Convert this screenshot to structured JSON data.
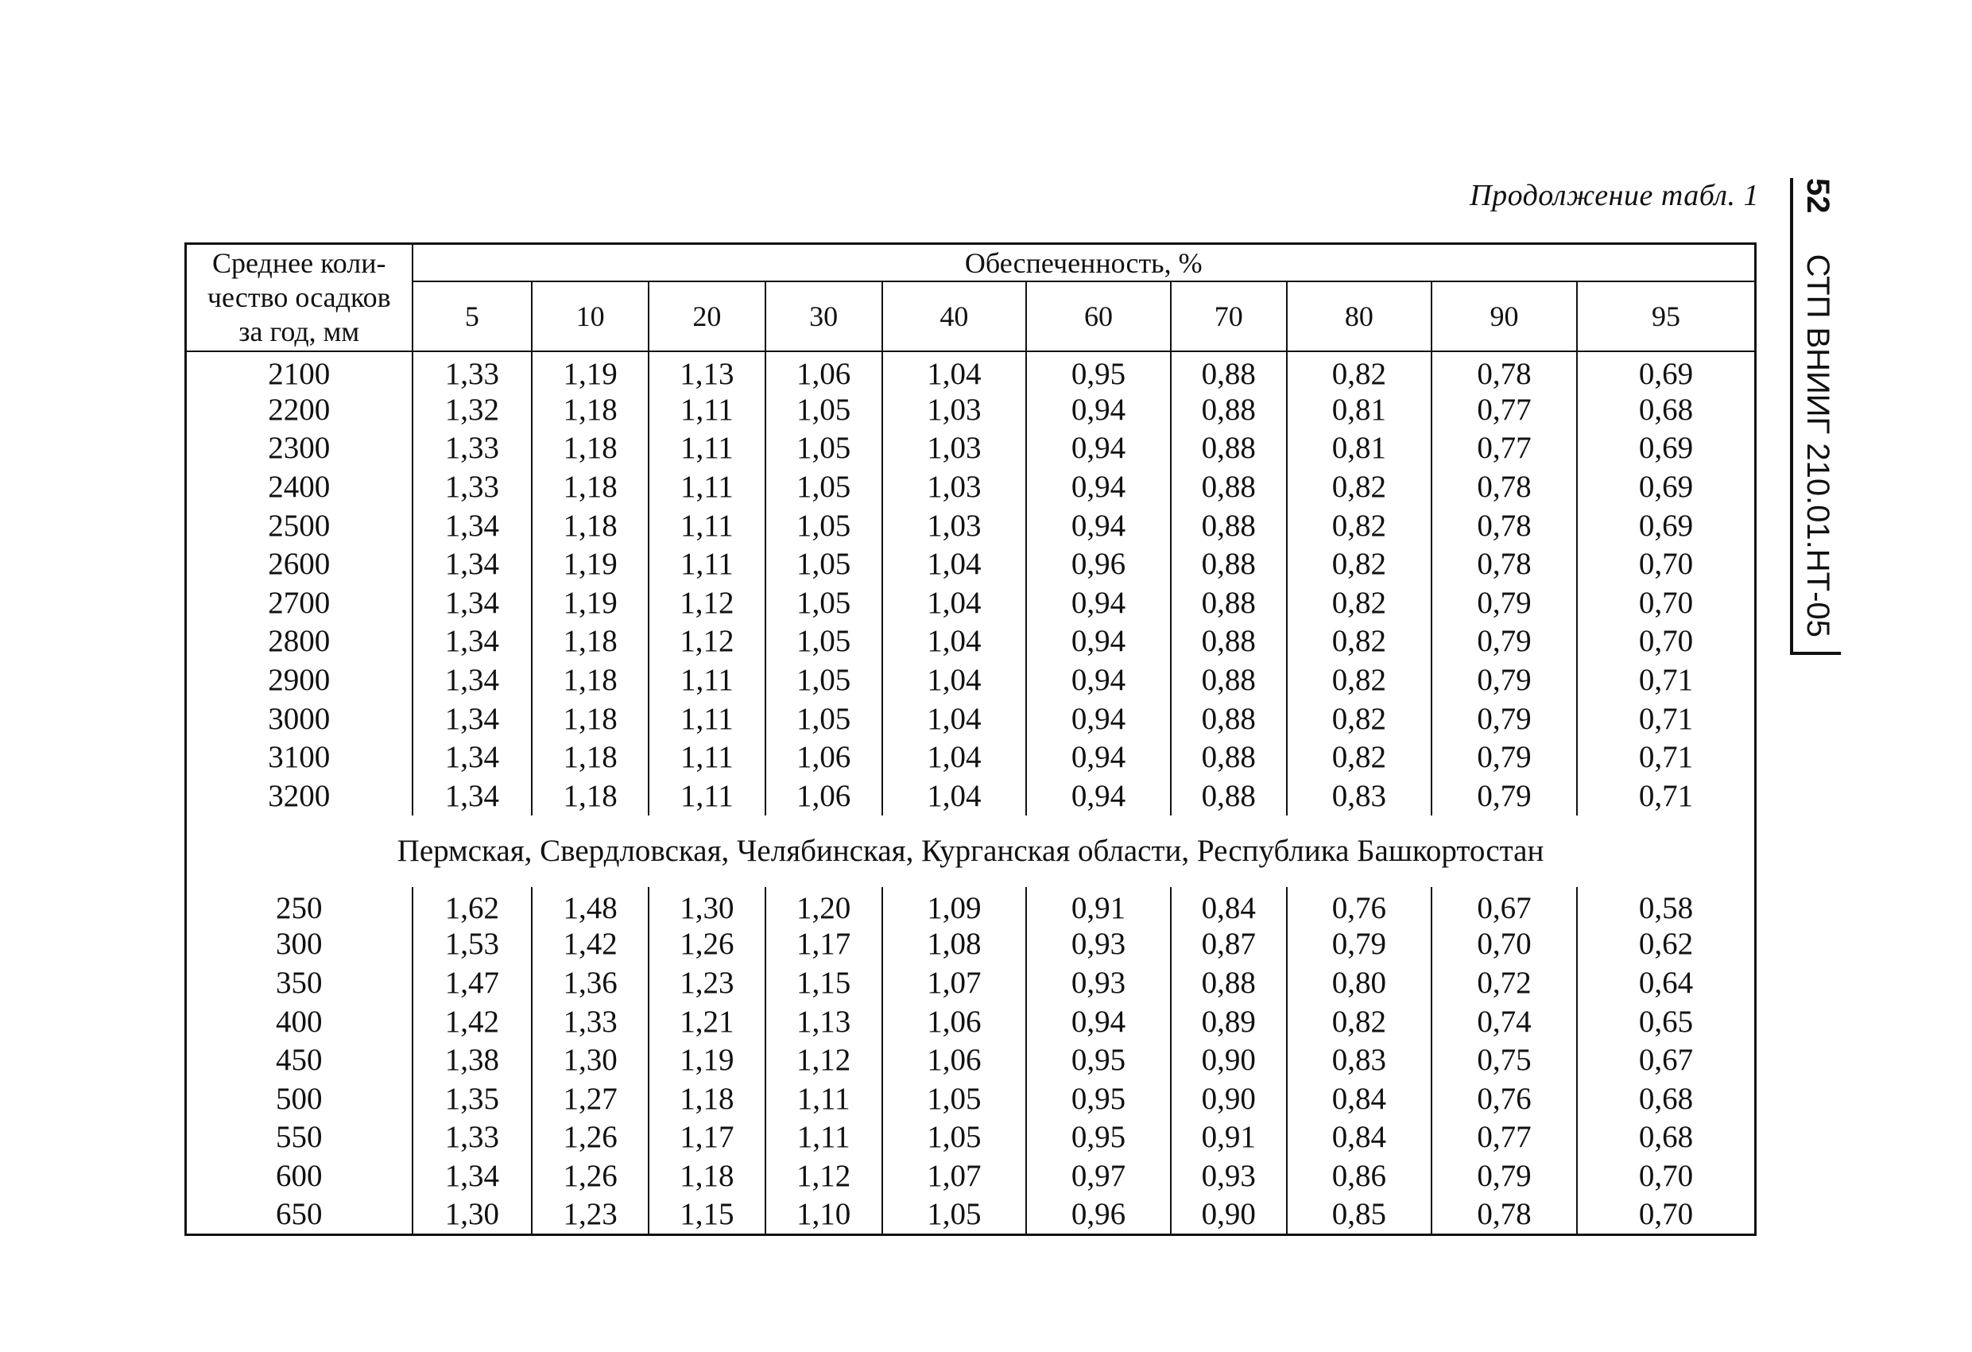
{
  "header": {
    "caption": "Продолжение  табл. 1",
    "page_number": "52",
    "doc_code": "СТП ВНИИГ 210.01.НТ-05"
  },
  "table": {
    "stub_header": "Среднее коли-чество осадков за год, мм",
    "stub_header_lines": [
      "Среднее коли-",
      "чество осадков",
      "за год, мм"
    ],
    "group_header": "Обеспеченность, %",
    "columns": [
      "5",
      "10",
      "20",
      "30",
      "40",
      "60",
      "70",
      "80",
      "90",
      "95"
    ],
    "section1_rows": [
      {
        "p": "2100",
        "v": [
          "1,33",
          "1,19",
          "1,13",
          "1,06",
          "1,04",
          "0,95",
          "0,88",
          "0,82",
          "0,78",
          "0,69"
        ]
      },
      {
        "p": "2200",
        "v": [
          "1,32",
          "1,18",
          "1,11",
          "1,05",
          "1,03",
          "0,94",
          "0,88",
          "0,81",
          "0,77",
          "0,68"
        ]
      },
      {
        "p": "2300",
        "v": [
          "1,33",
          "1,18",
          "1,11",
          "1,05",
          "1,03",
          "0,94",
          "0,88",
          "0,81",
          "0,77",
          "0,69"
        ]
      },
      {
        "p": "2400",
        "v": [
          "1,33",
          "1,18",
          "1,11",
          "1,05",
          "1,03",
          "0,94",
          "0,88",
          "0,82",
          "0,78",
          "0,69"
        ]
      },
      {
        "p": "2500",
        "v": [
          "1,34",
          "1,18",
          "1,11",
          "1,05",
          "1,03",
          "0,94",
          "0,88",
          "0,82",
          "0,78",
          "0,69"
        ]
      },
      {
        "p": "2600",
        "v": [
          "1,34",
          "1,19",
          "1,11",
          "1,05",
          "1,04",
          "0,96",
          "0,88",
          "0,82",
          "0,78",
          "0,70"
        ]
      },
      {
        "p": "2700",
        "v": [
          "1,34",
          "1,19",
          "1,12",
          "1,05",
          "1,04",
          "0,94",
          "0,88",
          "0,82",
          "0,79",
          "0,70"
        ]
      },
      {
        "p": "2800",
        "v": [
          "1,34",
          "1,18",
          "1,12",
          "1,05",
          "1,04",
          "0,94",
          "0,88",
          "0,82",
          "0,79",
          "0,70"
        ]
      },
      {
        "p": "2900",
        "v": [
          "1,34",
          "1,18",
          "1,11",
          "1,05",
          "1,04",
          "0,94",
          "0,88",
          "0,82",
          "0,79",
          "0,71"
        ]
      },
      {
        "p": "3000",
        "v": [
          "1,34",
          "1,18",
          "1,11",
          "1,05",
          "1,04",
          "0,94",
          "0,88",
          "0,82",
          "0,79",
          "0,71"
        ]
      },
      {
        "p": "3100",
        "v": [
          "1,34",
          "1,18",
          "1,11",
          "1,06",
          "1,04",
          "0,94",
          "0,88",
          "0,82",
          "0,79",
          "0,71"
        ]
      },
      {
        "p": "3200",
        "v": [
          "1,34",
          "1,18",
          "1,11",
          "1,06",
          "1,04",
          "0,94",
          "0,88",
          "0,83",
          "0,79",
          "0,71"
        ]
      }
    ],
    "region_heading": "Пермская, Свердловская, Челябинская, Курганская области, Республика Башкортостан",
    "section2_rows": [
      {
        "p": "250",
        "v": [
          "1,62",
          "1,48",
          "1,30",
          "1,20",
          "1,09",
          "0,91",
          "0,84",
          "0,76",
          "0,67",
          "0,58"
        ]
      },
      {
        "p": "300",
        "v": [
          "1,53",
          "1,42",
          "1,26",
          "1,17",
          "1,08",
          "0,93",
          "0,87",
          "0,79",
          "0,70",
          "0,62"
        ]
      },
      {
        "p": "350",
        "v": [
          "1,47",
          "1,36",
          "1,23",
          "1,15",
          "1,07",
          "0,93",
          "0,88",
          "0,80",
          "0,72",
          "0,64"
        ]
      },
      {
        "p": "400",
        "v": [
          "1,42",
          "1,33",
          "1,21",
          "1,13",
          "1,06",
          "0,94",
          "0,89",
          "0,82",
          "0,74",
          "0,65"
        ]
      },
      {
        "p": "450",
        "v": [
          "1,38",
          "1,30",
          "1,19",
          "1,12",
          "1,06",
          "0,95",
          "0,90",
          "0,83",
          "0,75",
          "0,67"
        ]
      },
      {
        "p": "500",
        "v": [
          "1,35",
          "1,27",
          "1,18",
          "1,11",
          "1,05",
          "0,95",
          "0,90",
          "0,84",
          "0,76",
          "0,68"
        ]
      },
      {
        "p": "550",
        "v": [
          "1,33",
          "1,26",
          "1,17",
          "1,11",
          "1,05",
          "0,95",
          "0,91",
          "0,84",
          "0,77",
          "0,68"
        ]
      },
      {
        "p": "600",
        "v": [
          "1,34",
          "1,26",
          "1,18",
          "1,12",
          "1,07",
          "0,97",
          "0,93",
          "0,86",
          "0,79",
          "0,70"
        ]
      },
      {
        "p": "650",
        "v": [
          "1,30",
          "1,23",
          "1,15",
          "1,10",
          "1,05",
          "0,96",
          "0,90",
          "0,85",
          "0,78",
          "0,70"
        ]
      }
    ]
  }
}
